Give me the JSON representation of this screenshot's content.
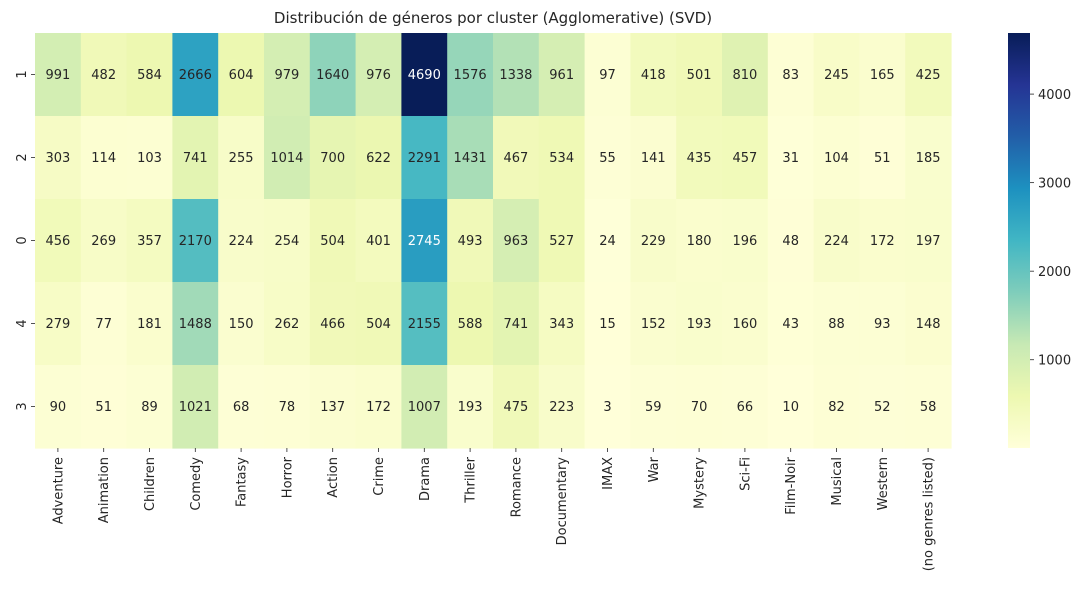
{
  "chart_data": {
    "type": "heatmap",
    "title": "Distribución de géneros por cluster (Agglomerative) (SVD)",
    "xlabel": "",
    "ylabel": "",
    "colormap": "YlGnBu",
    "columns": [
      "Adventure",
      "Animation",
      "Children",
      "Comedy",
      "Fantasy",
      "Horror",
      "Action",
      "Crime",
      "Drama",
      "Thriller",
      "Romance",
      "Documentary",
      "IMAX",
      "War",
      "Mystery",
      "Sci-Fi",
      "Film-Noir",
      "Musical",
      "Western",
      "(no genres listed)"
    ],
    "rows": [
      "1",
      "2",
      "0",
      "4",
      "3"
    ],
    "values": [
      [
        991,
        482,
        584,
        2666,
        604,
        979,
        1640,
        976,
        4690,
        1576,
        1338,
        961,
        97,
        418,
        501,
        810,
        83,
        245,
        165,
        425
      ],
      [
        303,
        114,
        103,
        741,
        255,
        1014,
        700,
        622,
        2291,
        1431,
        467,
        534,
        55,
        141,
        435,
        457,
        31,
        104,
        51,
        185
      ],
      [
        456,
        269,
        357,
        2170,
        224,
        254,
        504,
        401,
        2745,
        493,
        963,
        527,
        24,
        229,
        180,
        196,
        48,
        224,
        172,
        197
      ],
      [
        279,
        77,
        181,
        1488,
        150,
        262,
        466,
        504,
        2155,
        588,
        741,
        343,
        15,
        152,
        193,
        160,
        43,
        88,
        93,
        148
      ],
      [
        90,
        51,
        89,
        1021,
        68,
        78,
        137,
        172,
        1007,
        193,
        475,
        223,
        3,
        59,
        70,
        66,
        10,
        82,
        52,
        58
      ]
    ],
    "vmin": 3,
    "vmax": 4690,
    "colorbar_ticks": [
      1000,
      2000,
      3000,
      4000
    ]
  }
}
